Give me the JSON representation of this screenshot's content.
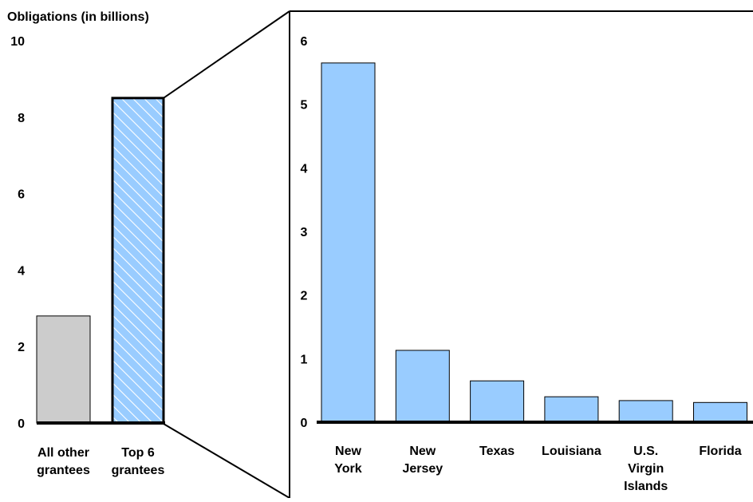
{
  "colors": {
    "gray_bar": "#cccccc",
    "blue_bar": "#99ccff",
    "axis": "#000000"
  },
  "chart_data": [
    {
      "type": "bar",
      "title": "",
      "ylabel": "Obligations (in billions)",
      "xlabel": "",
      "ylim": [
        0,
        10
      ],
      "yticks": [
        "0",
        "2",
        "4",
        "6",
        "8",
        "10"
      ],
      "ytick_values": [
        0,
        2,
        4,
        6,
        8,
        10
      ],
      "categories": [
        [
          "All other",
          "grantees"
        ],
        [
          "Top 6",
          "grantees"
        ]
      ],
      "values": [
        2.8,
        8.5
      ],
      "bar_styles": [
        "gray",
        "blue-hatched"
      ]
    },
    {
      "type": "bar",
      "title": "",
      "ylabel": "",
      "xlabel": "",
      "ylim": [
        0,
        6
      ],
      "yticks": [
        "0",
        "1",
        "2",
        "3",
        "4",
        "5",
        "6"
      ],
      "ytick_values": [
        0,
        1,
        2,
        3,
        4,
        5,
        6
      ],
      "categories": [
        [
          "New",
          "York"
        ],
        [
          "New",
          "Jersey"
        ],
        [
          "Texas"
        ],
        [
          "Louisiana"
        ],
        [
          "U.S.",
          "Virgin",
          "Islands"
        ],
        [
          "Florida"
        ]
      ],
      "values": [
        5.65,
        1.13,
        0.65,
        0.4,
        0.34,
        0.31
      ],
      "bar_styles": [
        "blue",
        "blue",
        "blue",
        "blue",
        "blue",
        "blue"
      ]
    }
  ]
}
